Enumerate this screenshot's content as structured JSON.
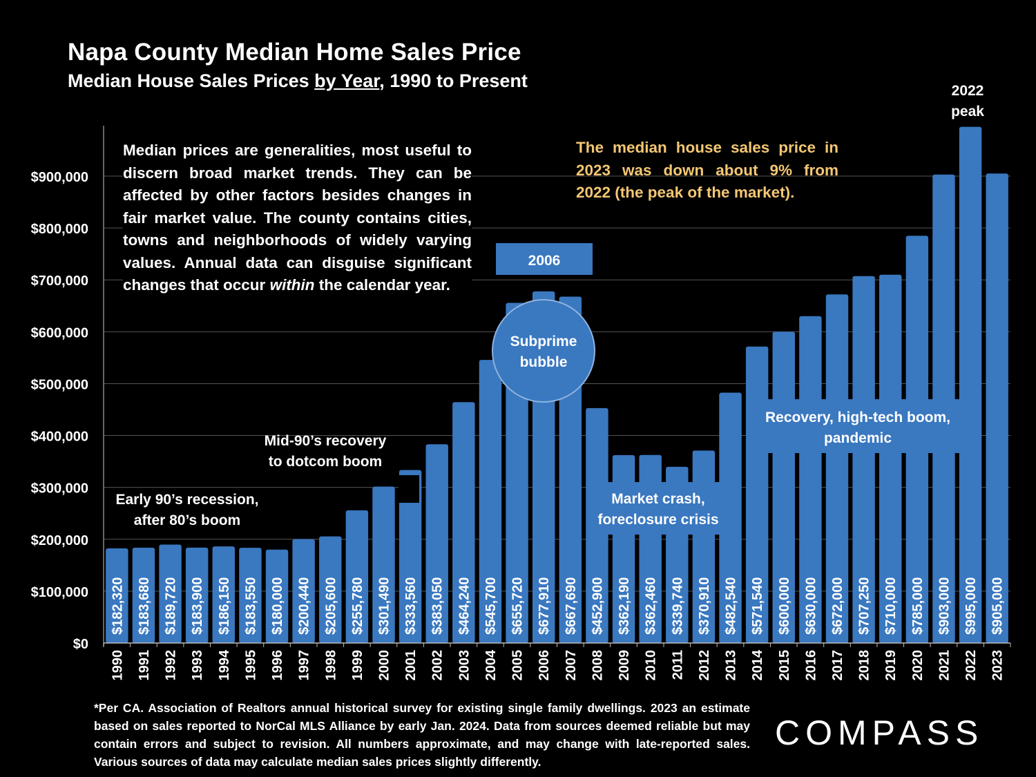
{
  "header": {
    "title": "Napa County Median Home Sales Price",
    "subtitle_pre": "Median House Sales Prices ",
    "subtitle_underlined": "by Year",
    "subtitle_post": ", 1990 to Present"
  },
  "chart_data": {
    "type": "bar",
    "title": "Napa County Median Home Sales Price",
    "subtitle": "Median House Sales Prices by Year, 1990 to Present",
    "xlabel": "",
    "ylabel": "",
    "ylim": [
      0,
      1000000
    ],
    "yticks": [
      0,
      100000,
      200000,
      300000,
      400000,
      500000,
      600000,
      700000,
      800000,
      900000
    ],
    "ytick_labels": [
      "$0",
      "$100,000",
      "$200,000",
      "$300,000",
      "$400,000",
      "$500,000",
      "$600,000",
      "$700,000",
      "$800,000",
      "$900,000"
    ],
    "categories": [
      "1990",
      "1991",
      "1992",
      "1993",
      "1994",
      "1995",
      "1996",
      "1997",
      "1998",
      "1999",
      "2000",
      "2001",
      "2002",
      "2003",
      "2004",
      "2005",
      "2006",
      "2007",
      "2008",
      "2009",
      "2010",
      "2011",
      "2012",
      "2013",
      "2014",
      "2015",
      "2016",
      "2017",
      "2018",
      "2019",
      "2020",
      "2021",
      "2022",
      "2023"
    ],
    "values": [
      182320,
      183680,
      189720,
      183900,
      186150,
      183550,
      180000,
      200440,
      205600,
      255780,
      301490,
      333560,
      383050,
      464240,
      545700,
      655720,
      677910,
      667690,
      452900,
      362190,
      362460,
      339740,
      370910,
      482540,
      571540,
      600000,
      630000,
      672000,
      707250,
      710000,
      785000,
      903000,
      995000,
      905000
    ],
    "value_labels": [
      "$182,320",
      "$183,680",
      "$189,720",
      "$183,900",
      "$186,150",
      "$183,550",
      "$180,000",
      "$200,440",
      "$205,600",
      "$255,780",
      "$301,490",
      "$333,560",
      "$383,050",
      "$464,240",
      "$545,700",
      "$655,720",
      "$677,910",
      "$667,690",
      "$452,900",
      "$362,190",
      "$362,460",
      "$339,740",
      "$370,910",
      "$482,540",
      "$571,540",
      "$600,000",
      "$630,000",
      "$672,000",
      "$707,250",
      "$710,000",
      "$785,000",
      "$903,000",
      "$995,000",
      "$905,000"
    ],
    "grid": true,
    "bar_color": "#3a78c0",
    "annotations": {
      "early90s": [
        "Early 90’s recession,",
        "after 80’s boom"
      ],
      "mid90s": [
        "Mid-90’s recovery",
        "to dotcom boom"
      ],
      "year2006": "2006",
      "subprime": [
        "Subprime",
        "bubble"
      ],
      "crash": [
        "Market crash,",
        "foreclosure crisis"
      ],
      "recovery": [
        "Recovery, high-tech boom,",
        "pandemic"
      ],
      "peak": [
        "2022",
        "peak"
      ]
    }
  },
  "notes": {
    "left_pre": "Median prices are generalities, most useful to discern broad market trends. They can be affected by other factors besides changes in fair market value. The county contains cities, towns and neighborhoods of widely varying values. Annual data can disguise significant changes that occur ",
    "left_italic": "within",
    "left_post": " the calendar year.",
    "right": "The median house sales price in 2023 was down about 9% from 2022 (the peak of the market)."
  },
  "footnote": "*Per CA. Association of Realtors annual historical survey for existing single family dwellings. 2023 an estimate based on sales reported to NorCal MLS Alliance by early Jan. 2024. Data from sources deemed reliable but may contain errors and subject to revision. All numbers approximate, and may change with late-reported sales. Various sources of data may calculate median sales prices slightly differently.",
  "logo": {
    "text": "COMPASS"
  }
}
